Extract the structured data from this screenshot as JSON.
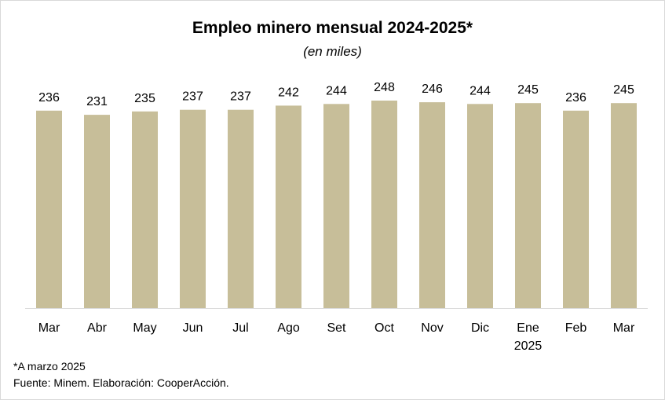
{
  "chart_data": {
    "type": "bar",
    "title": "Empleo minero mensual 2024-2025*",
    "subtitle": "(en miles)",
    "categories": [
      "Mar",
      "Abr",
      "May",
      "Jun",
      "Jul",
      "Ago",
      "Set",
      "Oct",
      "Nov",
      "Dic",
      "Ene\n2025",
      "Feb",
      "Mar"
    ],
    "values": [
      236,
      231,
      235,
      237,
      237,
      242,
      244,
      248,
      246,
      244,
      245,
      236,
      245
    ],
    "data_labels": true,
    "ylim": [
      0,
      250
    ],
    "grid": false,
    "legend": "none",
    "xlabel": "",
    "ylabel": "",
    "colors": {
      "bar": "#C7BE99",
      "axis": "#d9d9d9",
      "text": "#000000"
    }
  },
  "footnote": "*A marzo 2025",
  "source": "Fuente: Minem. Elaboración: CooperAcción."
}
